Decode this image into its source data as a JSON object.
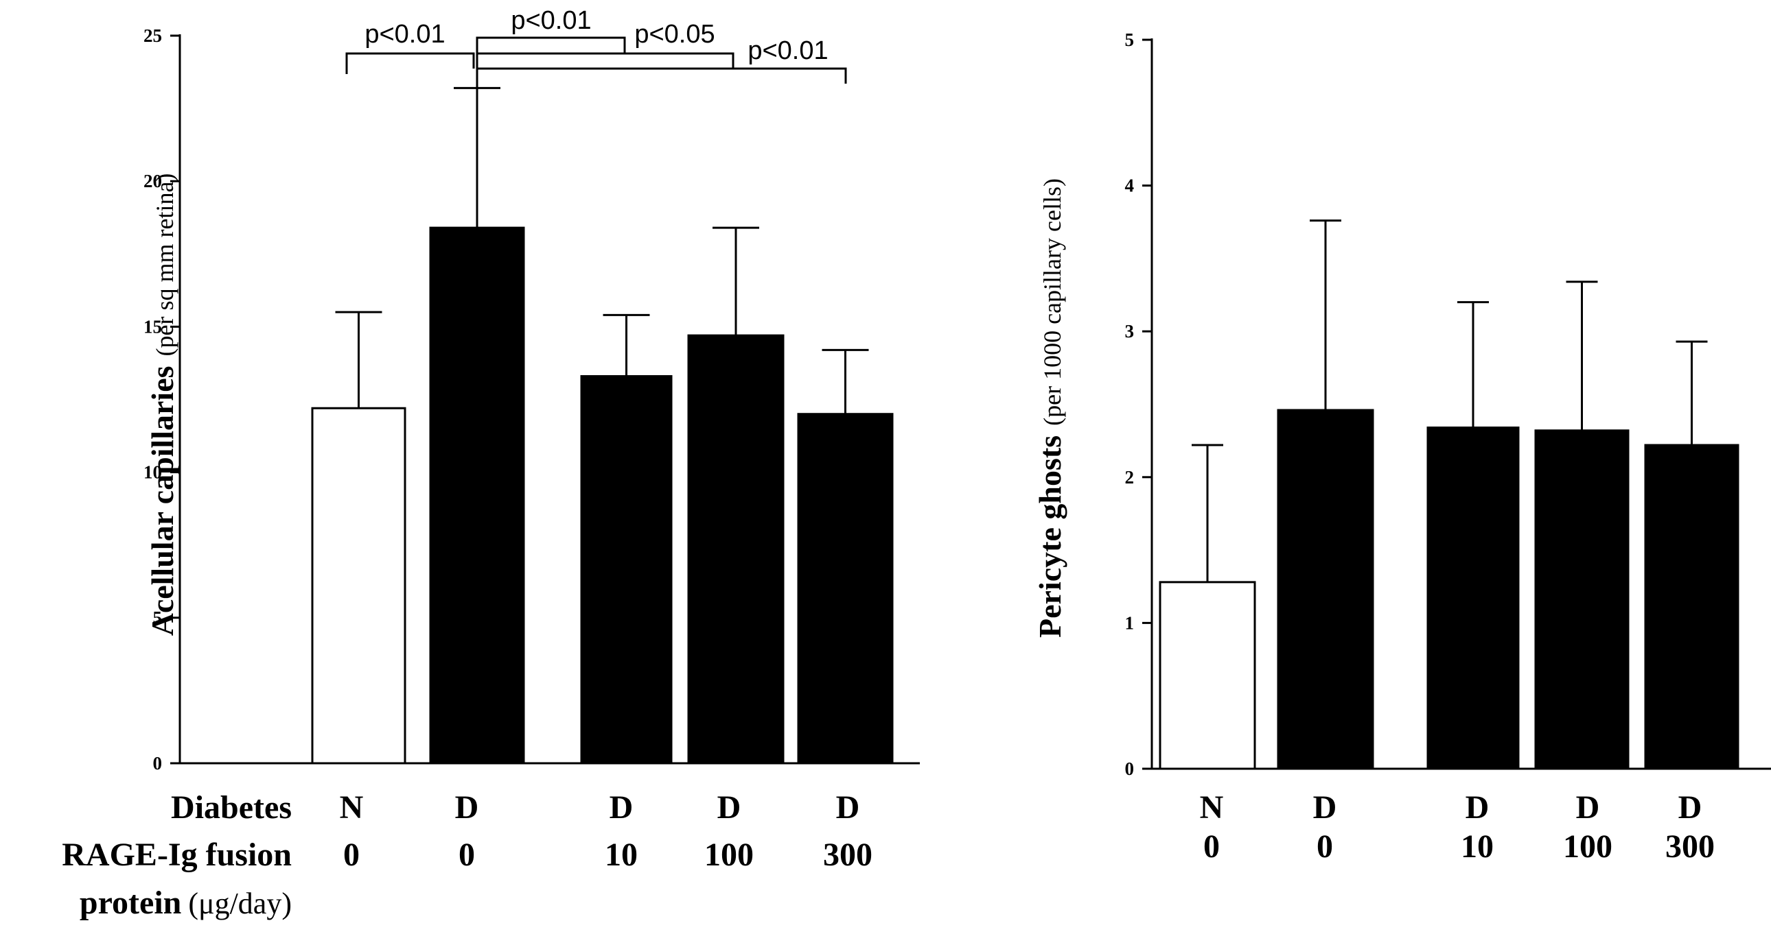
{
  "chart_data": [
    {
      "type": "bar",
      "title": "",
      "ylabel_main": "Acellular capillaries",
      "ylabel_sub": "(per sq mm retina)",
      "xlabel": "",
      "ylim": [
        0,
        25
      ],
      "yticks": [
        "0",
        "5",
        "10",
        "15",
        "20",
        "25"
      ],
      "row_labels": {
        "diabetes": "Diabetes",
        "rage_main": "RAGE-Ig fusion",
        "rage_sub_bold": "protein",
        "rage_sub_plain": "(μg/day)"
      },
      "categories": [
        {
          "diabetes": "N",
          "dose": "0"
        },
        {
          "diabetes": "D",
          "dose": "0"
        },
        {
          "diabetes": "D",
          "dose": "10"
        },
        {
          "diabetes": "D",
          "dose": "100"
        },
        {
          "diabetes": "D",
          "dose": "300"
        }
      ],
      "values": [
        12.2,
        18.4,
        13.3,
        14.7,
        12.0
      ],
      "errors": [
        3.3,
        4.8,
        2.1,
        3.7,
        2.2
      ],
      "fills": [
        "#ffffff",
        "#000000",
        "#000000",
        "#000000",
        "#000000"
      ],
      "significance": [
        {
          "from": 0,
          "to": 1,
          "label": "p<0.01"
        },
        {
          "from": 1,
          "to": 2,
          "label": "p<0.01"
        },
        {
          "from": 1,
          "to": 3,
          "label": "p<0.05"
        },
        {
          "from": 1,
          "to": 4,
          "label": "p<0.01"
        }
      ]
    },
    {
      "type": "bar",
      "title": "",
      "ylabel_main": "Pericyte ghosts",
      "ylabel_sub": "(per 1000 capillary cells)",
      "xlabel": "",
      "ylim": [
        0,
        5
      ],
      "yticks": [
        "0",
        "1",
        "2",
        "3",
        "4",
        "5"
      ],
      "categories": [
        {
          "diabetes": "N",
          "dose": "0"
        },
        {
          "diabetes": "D",
          "dose": "0"
        },
        {
          "diabetes": "D",
          "dose": "10"
        },
        {
          "diabetes": "D",
          "dose": "100"
        },
        {
          "diabetes": "D",
          "dose": "300"
        }
      ],
      "values": [
        1.28,
        2.46,
        2.34,
        2.32,
        2.22
      ],
      "errors": [
        0.94,
        1.3,
        0.86,
        1.02,
        0.71
      ],
      "fills": [
        "#ffffff",
        "#000000",
        "#000000",
        "#000000",
        "#000000"
      ]
    }
  ]
}
